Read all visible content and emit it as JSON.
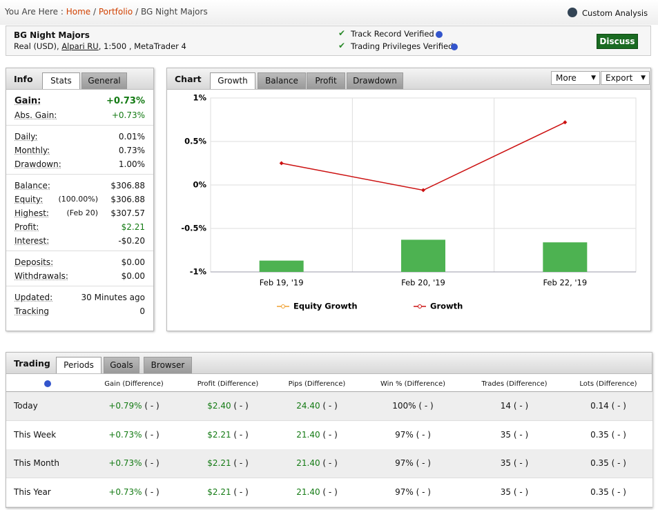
{
  "breadcrumb": {
    "prefix": "You Are Here :",
    "items": [
      "Home",
      "Portfolio",
      "BG Night Majors"
    ],
    "separator": "/"
  },
  "custom_analysis": "Custom Analysis",
  "header": {
    "name": "BG Night Majors",
    "details_pre": "Real (USD),",
    "broker": "Alpari RU",
    "details_post": ", 1:500 , MetaTrader 4",
    "verified": [
      "Track Record Verified",
      "Trading Privileges Verified"
    ],
    "discuss": "Discuss"
  },
  "info": {
    "title": "Info",
    "tabs": [
      "Stats",
      "General"
    ],
    "groups": [
      [
        {
          "label": "Gain:",
          "value": "+0.73%"
        },
        {
          "label": "Abs. Gain:",
          "value": "+0.73%"
        }
      ],
      [
        {
          "label": "Daily:",
          "value": "0.01%"
        },
        {
          "label": "Monthly:",
          "value": "0.73%"
        },
        {
          "label": "Drawdown:",
          "value": "1.00%"
        }
      ],
      [
        {
          "label": "Balance:",
          "value": "$306.88"
        },
        {
          "label": "Equity:",
          "note": "(100.00%)",
          "value": "$306.88"
        },
        {
          "label": "Highest:",
          "note": "(Feb 20)",
          "value": "$307.57"
        },
        {
          "label": "Profit:",
          "value": "$2.21"
        },
        {
          "label": "Interest:",
          "value": "-$0.20"
        }
      ],
      [
        {
          "label": "Deposits:",
          "value": "$0.00"
        },
        {
          "label": "Withdrawals:",
          "value": "$0.00"
        }
      ],
      [
        {
          "label": "Updated:",
          "value": "30 Minutes ago"
        },
        {
          "label": "Tracking",
          "value": "0"
        }
      ]
    ]
  },
  "chart_panel": {
    "title": "Chart",
    "tabs": [
      "Growth",
      "Balance",
      "Profit",
      "Drawdown"
    ],
    "menus": [
      "More",
      "Export"
    ]
  },
  "chart_data": {
    "type": "line",
    "categories": [
      "Feb 19, '19",
      "Feb 20, '19",
      "Feb 22, '19"
    ],
    "series": [
      {
        "type": "bar",
        "color": "#4db251",
        "values": [
          -0.87,
          -0.63,
          -0.66
        ]
      },
      {
        "name": "Equity Growth",
        "color": "#f0a030",
        "values": [
          null,
          null,
          null
        ]
      },
      {
        "name": "Growth",
        "color": "#cc1111",
        "values": [
          0.25,
          -0.06,
          0.72
        ]
      }
    ],
    "ylim": [
      -1,
      1
    ],
    "yticks": [
      {
        "value": -1,
        "label": "-1%"
      },
      {
        "value": -0.5,
        "label": "-0.5%"
      },
      {
        "value": 0,
        "label": "0%"
      },
      {
        "value": 0.5,
        "label": "0.5%"
      },
      {
        "value": 1,
        "label": "1%"
      }
    ],
    "grid": true,
    "legend": "bottom"
  },
  "trading": {
    "title": "Trading",
    "tabs": [
      "Periods",
      "Goals",
      "Browser"
    ],
    "columns": [
      "Gain (Difference)",
      "Profit (Difference)",
      "Pips (Difference)",
      "Win % (Difference)",
      "Trades (Difference)",
      "Lots (Difference)"
    ],
    "rows": [
      {
        "period": "Today",
        "cells": [
          [
            "+0.79%",
            "( - )"
          ],
          [
            "$2.40",
            "( - )"
          ],
          [
            "24.40",
            "( - )"
          ],
          [
            "100%",
            "( - )"
          ],
          [
            "14",
            "( - )"
          ],
          [
            "0.14",
            "( - )"
          ]
        ]
      },
      {
        "period": "This Week",
        "cells": [
          [
            "+0.73%",
            "( - )"
          ],
          [
            "$2.21",
            "( - )"
          ],
          [
            "21.40",
            "( - )"
          ],
          [
            "97%",
            "( - )"
          ],
          [
            "35",
            "( - )"
          ],
          [
            "0.35",
            "( - )"
          ]
        ]
      },
      {
        "period": "This Month",
        "cells": [
          [
            "+0.73%",
            "( - )"
          ],
          [
            "$2.21",
            "( - )"
          ],
          [
            "21.40",
            "( - )"
          ],
          [
            "97%",
            "( - )"
          ],
          [
            "35",
            "( - )"
          ],
          [
            "0.35",
            "( - )"
          ]
        ]
      },
      {
        "period": "This Year",
        "cells": [
          [
            "+0.73%",
            "( - )"
          ],
          [
            "$2.21",
            "( - )"
          ],
          [
            "21.40",
            "( - )"
          ],
          [
            "97%",
            "( - )"
          ],
          [
            "35",
            "( - )"
          ],
          [
            "0.35",
            "( - )"
          ]
        ]
      }
    ]
  }
}
